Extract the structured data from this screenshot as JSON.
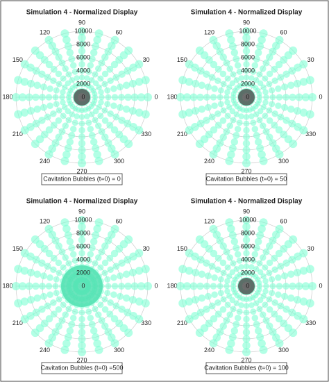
{
  "chart_data": [
    {
      "type": "polar_bubble",
      "title": "Simulation 4 - Normalized Display",
      "annotation": "Cavitation Bubbles (t=0) = 0",
      "thetaticks": [
        0,
        30,
        60,
        90,
        120,
        150,
        180,
        210,
        240,
        270,
        300,
        330
      ],
      "rlim": [
        0,
        10000
      ],
      "rticks": [
        0,
        2000,
        4000,
        6000,
        8000,
        10000
      ],
      "theta": [
        0,
        15,
        30,
        45,
        60,
        75,
        90,
        105,
        120,
        135,
        150,
        165,
        180,
        195,
        210,
        225,
        240,
        255,
        270,
        285,
        300,
        315,
        330,
        345
      ],
      "r": [
        1000,
        2000,
        3000,
        4000,
        5000,
        6000,
        7000,
        8000,
        9000,
        10000
      ],
      "color": "#7fffd4",
      "center_color": "#555555"
    },
    {
      "type": "polar_bubble",
      "title": "Simulation 4 - Normalized Display",
      "annotation": "Cavitation Bubbles (t=0) = 50",
      "thetaticks": [
        0,
        30,
        60,
        90,
        120,
        150,
        180,
        210,
        240,
        270,
        300,
        330
      ],
      "rlim": [
        0,
        10000
      ],
      "rticks": [
        0,
        2000,
        4000,
        6000,
        8000,
        10000
      ],
      "theta": [
        0,
        15,
        30,
        45,
        60,
        75,
        90,
        105,
        120,
        135,
        150,
        165,
        180,
        195,
        210,
        225,
        240,
        255,
        270,
        285,
        300,
        315,
        330,
        345
      ],
      "r": [
        1000,
        2000,
        3000,
        4000,
        5000,
        6000,
        7000,
        8000,
        9000,
        10000
      ],
      "color": "#7fffd4",
      "center_color": "#555555"
    },
    {
      "type": "polar_bubble",
      "title": "Simulation 4 - Normalized Display",
      "annotation": "Cavitation Bubbles (t=0) =500",
      "thetaticks": [
        0,
        30,
        60,
        90,
        120,
        150,
        180,
        210,
        240,
        270,
        300,
        330
      ],
      "rlim": [
        0,
        10000
      ],
      "rticks": [
        0,
        2000,
        4000,
        6000,
        8000,
        10000
      ],
      "theta": [
        0,
        15,
        30,
        45,
        60,
        75,
        90,
        105,
        120,
        135,
        150,
        165,
        180,
        195,
        210,
        225,
        240,
        255,
        270,
        285,
        300,
        315,
        330,
        345
      ],
      "r": [
        1000,
        2000,
        3000,
        4000,
        5000,
        6000,
        7000,
        8000,
        9000,
        10000
      ],
      "color": "#7fffd4",
      "center_color": "#4fe0b0"
    },
    {
      "type": "polar_bubble",
      "title": "Simulation 4 - Normalized Display",
      "annotation": "Cavitation Bubbles (t=0) = 100",
      "thetaticks": [
        0,
        30,
        60,
        90,
        120,
        150,
        180,
        210,
        240,
        270,
        300,
        330
      ],
      "rlim": [
        0,
        10000
      ],
      "rticks": [
        0,
        2000,
        4000,
        6000,
        8000,
        10000
      ],
      "theta": [
        0,
        15,
        30,
        45,
        60,
        75,
        90,
        105,
        120,
        135,
        150,
        165,
        180,
        195,
        210,
        225,
        240,
        255,
        270,
        285,
        300,
        315,
        330,
        345
      ],
      "r": [
        1000,
        2000,
        3000,
        4000,
        5000,
        6000,
        7000,
        8000,
        9000,
        10000
      ],
      "color": "#7fffd4",
      "center_color": "#555555"
    }
  ]
}
